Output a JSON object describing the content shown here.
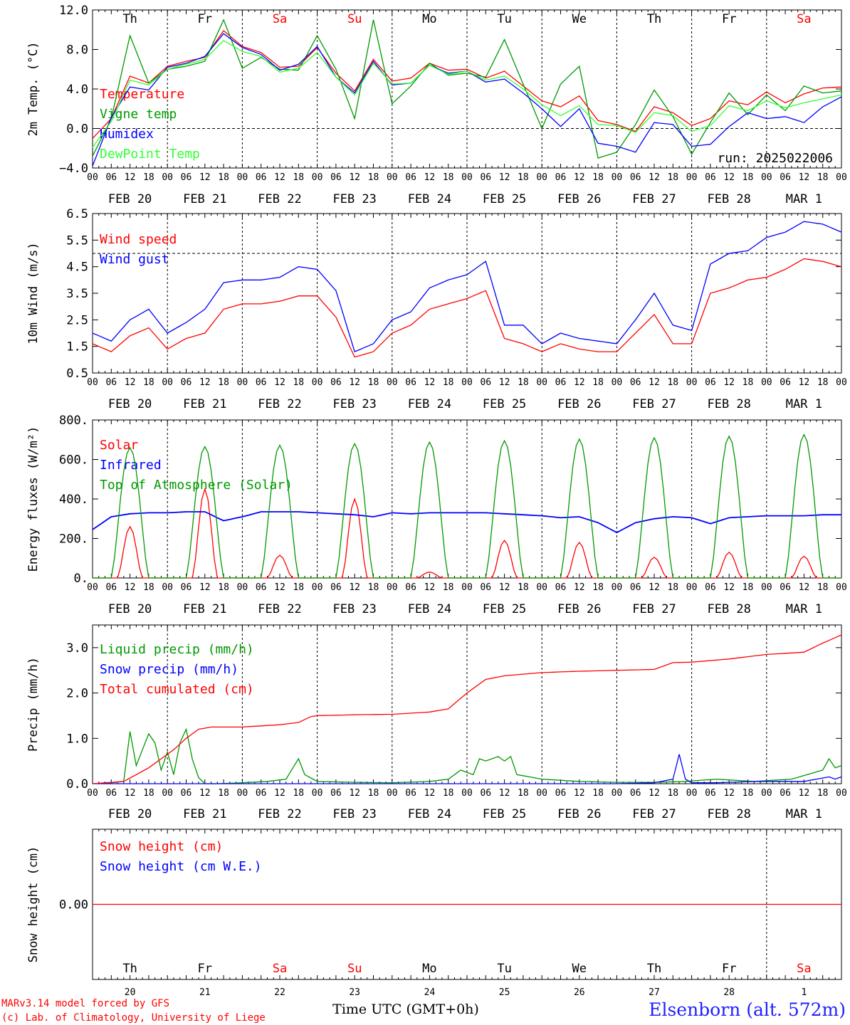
{
  "chart_data": [
    {
      "type": "line",
      "ylabel": "2m Temp. (°C)",
      "ylim": [
        -4.0,
        12.0
      ],
      "yticks": [
        "12.0",
        "8.0",
        "4.0",
        "0.0",
        "−4.0"
      ],
      "ytick_values": [
        12,
        8,
        4,
        0,
        -4
      ],
      "hlines": [
        0
      ],
      "x_unit": "hours since FEB 20 00 UTC",
      "weekdays": [
        "Th",
        "Fr",
        "Sa",
        "Su",
        "Mo",
        "Tu",
        "We",
        "Th",
        "Fr",
        "Sa"
      ],
      "weekday_colors": [
        "#000000",
        "#000000",
        "#ff0000",
        "#ff0000",
        "#000000",
        "#000000",
        "#000000",
        "#000000",
        "#000000",
        "#ff0000"
      ],
      "annotation": "run: 2025022006",
      "series": [
        {
          "name": "Temperature",
          "color": "#ff0000",
          "x": [
            0,
            6,
            12,
            18,
            24,
            30,
            36,
            42,
            48,
            54,
            60,
            66,
            72,
            78,
            84,
            90,
            96,
            102,
            108,
            114,
            120,
            126,
            132,
            138,
            144,
            150,
            156,
            162,
            168,
            174,
            180,
            186,
            192,
            198,
            204,
            210,
            216,
            222,
            228,
            234,
            240
          ],
          "y": [
            -1.0,
            1.0,
            5.3,
            4.6,
            6.3,
            6.8,
            7.2,
            9.9,
            8.3,
            7.7,
            6.2,
            6.3,
            8.2,
            5.6,
            3.8,
            7.0,
            4.8,
            5.1,
            6.6,
            5.9,
            6.0,
            5.1,
            5.8,
            4.3,
            2.8,
            2.2,
            3.3,
            0.8,
            0.4,
            -0.3,
            2.2,
            1.6,
            0.3,
            1.0,
            2.8,
            2.4,
            3.7,
            2.6,
            3.5,
            4.1,
            4.2
          ]
        },
        {
          "name": "Vigne temp",
          "color": "#009900",
          "x": [
            0,
            6,
            12,
            18,
            24,
            30,
            36,
            42,
            48,
            54,
            60,
            66,
            72,
            78,
            84,
            90,
            96,
            102,
            108,
            114,
            120,
            126,
            132,
            138,
            144,
            150,
            156,
            162,
            168,
            174,
            180,
            186,
            192,
            198,
            204,
            210,
            216,
            222,
            228,
            234,
            240
          ],
          "y": [
            -2.8,
            1.0,
            9.4,
            4.6,
            6.0,
            6.3,
            6.8,
            11.0,
            6.1,
            7.2,
            6.0,
            5.9,
            9.4,
            6.0,
            1.0,
            11.0,
            2.5,
            4.3,
            6.6,
            5.4,
            5.6,
            5.2,
            9.0,
            4.5,
            0.0,
            4.5,
            6.3,
            -3.0,
            -2.4,
            0.4,
            3.9,
            1.2,
            -2.6,
            0.6,
            3.6,
            1.4,
            3.4,
            1.8,
            4.3,
            3.6,
            3.8
          ]
        },
        {
          "name": "Humidex",
          "color": "#0000ff",
          "x": [
            0,
            6,
            12,
            18,
            24,
            30,
            36,
            42,
            48,
            54,
            60,
            66,
            72,
            78,
            84,
            90,
            96,
            102,
            108,
            114,
            120,
            126,
            132,
            138,
            144,
            150,
            156,
            162,
            168,
            174,
            180,
            186,
            192,
            198,
            204,
            210,
            216,
            222,
            228,
            234,
            240
          ],
          "y": [
            -3.8,
            1.1,
            4.2,
            3.9,
            6.2,
            6.6,
            7.3,
            9.6,
            8.2,
            7.5,
            5.9,
            6.5,
            8.3,
            5.2,
            3.6,
            6.8,
            4.4,
            4.6,
            6.4,
            5.6,
            5.8,
            4.7,
            5.0,
            3.6,
            2.0,
            0.2,
            2.0,
            -1.5,
            -1.8,
            -2.4,
            0.6,
            0.4,
            -1.8,
            -1.6,
            0.2,
            1.6,
            1.0,
            1.2,
            0.6,
            2.2,
            3.2
          ]
        },
        {
          "name": "DewPoint Temp",
          "color": "#33ff33",
          "x": [
            0,
            6,
            12,
            18,
            24,
            30,
            36,
            42,
            48,
            54,
            60,
            66,
            72,
            78,
            84,
            90,
            96,
            102,
            108,
            114,
            120,
            126,
            132,
            138,
            144,
            150,
            156,
            162,
            168,
            174,
            180,
            186,
            192,
            198,
            204,
            210,
            216,
            222,
            228,
            234,
            240
          ],
          "y": [
            -1.9,
            0.7,
            4.9,
            4.4,
            6.0,
            6.5,
            7.0,
            8.9,
            7.8,
            7.3,
            5.7,
            6.1,
            7.7,
            5.2,
            3.4,
            6.6,
            4.5,
            4.6,
            6.4,
            5.5,
            5.8,
            4.9,
            5.3,
            4.0,
            2.4,
            1.3,
            2.3,
            0.4,
            0.3,
            -0.4,
            1.6,
            1.3,
            -0.3,
            0.3,
            2.3,
            1.8,
            2.8,
            2.1,
            2.6,
            3.0,
            3.4
          ]
        }
      ]
    },
    {
      "type": "line",
      "ylabel": "10m Wind (m/s)",
      "ylim": [
        0.5,
        6.5
      ],
      "yticks": [
        "6.5",
        "5.5",
        "4.5",
        "3.5",
        "2.5",
        "1.5",
        "0.5"
      ],
      "ytick_values": [
        6.5,
        5.5,
        4.5,
        3.5,
        2.5,
        1.5,
        0.5
      ],
      "hlines": [
        5.0
      ],
      "series": [
        {
          "name": "Wind speed",
          "color": "#ff0000",
          "x": [
            0,
            6,
            12,
            18,
            24,
            30,
            36,
            42,
            48,
            54,
            60,
            66,
            72,
            78,
            84,
            90,
            96,
            102,
            108,
            114,
            120,
            126,
            132,
            138,
            144,
            150,
            156,
            162,
            168,
            174,
            180,
            186,
            192,
            198,
            204,
            210,
            216,
            222,
            228,
            234,
            240
          ],
          "y": [
            1.6,
            1.3,
            1.9,
            2.2,
            1.4,
            1.8,
            2.0,
            2.9,
            3.1,
            3.1,
            3.2,
            3.4,
            3.4,
            2.6,
            1.1,
            1.3,
            2.0,
            2.3,
            2.9,
            3.1,
            3.3,
            3.6,
            1.8,
            1.6,
            1.3,
            1.6,
            1.4,
            1.3,
            1.3,
            2.0,
            2.7,
            1.6,
            1.6,
            3.5,
            3.7,
            4.0,
            4.1,
            4.4,
            4.8,
            4.7,
            4.5
          ]
        },
        {
          "name": "Wind gust",
          "color": "#0000ff",
          "x": [
            0,
            6,
            12,
            18,
            24,
            30,
            36,
            42,
            48,
            54,
            60,
            66,
            72,
            78,
            84,
            90,
            96,
            102,
            108,
            114,
            120,
            126,
            132,
            138,
            144,
            150,
            156,
            162,
            168,
            174,
            180,
            186,
            192,
            198,
            204,
            210,
            216,
            222,
            228,
            234,
            240
          ],
          "y": [
            2.0,
            1.7,
            2.5,
            2.9,
            2.0,
            2.4,
            2.9,
            3.9,
            4.0,
            4.0,
            4.1,
            4.5,
            4.4,
            3.6,
            1.3,
            1.6,
            2.5,
            2.8,
            3.7,
            4.0,
            4.2,
            4.7,
            2.3,
            2.3,
            1.6,
            2.0,
            1.8,
            1.7,
            1.6,
            2.5,
            3.5,
            2.3,
            2.1,
            4.6,
            5.0,
            5.1,
            5.6,
            5.8,
            6.2,
            6.1,
            5.8
          ]
        }
      ]
    },
    {
      "type": "line",
      "ylabel": "Energy fluxes (W/m²)",
      "ylim": [
        0,
        800
      ],
      "yticks": [
        "800.",
        "600.",
        "400.",
        "200.",
        "0."
      ],
      "ytick_values": [
        800,
        600,
        400,
        200,
        0
      ],
      "series": [
        {
          "name": "Solar",
          "color": "#ff0000",
          "day_peaks": [
            260,
            450,
            115,
            400,
            30,
            190,
            180,
            105,
            130,
            110
          ]
        },
        {
          "name": "Infrared",
          "color": "#0000ff",
          "x": [
            0,
            6,
            12,
            18,
            24,
            30,
            36,
            42,
            48,
            54,
            60,
            66,
            72,
            78,
            84,
            90,
            96,
            102,
            108,
            114,
            120,
            126,
            132,
            138,
            144,
            150,
            156,
            162,
            168,
            174,
            180,
            186,
            192,
            198,
            204,
            210,
            216,
            222,
            228,
            234,
            240
          ],
          "y": [
            245,
            310,
            325,
            330,
            330,
            335,
            335,
            290,
            310,
            335,
            335,
            335,
            330,
            325,
            320,
            310,
            330,
            325,
            330,
            330,
            330,
            330,
            325,
            320,
            315,
            305,
            310,
            280,
            230,
            280,
            300,
            310,
            305,
            275,
            305,
            310,
            315,
            315,
            315,
            320,
            320
          ]
        },
        {
          "name": "Top of Atmosphere (Solar)",
          "color": "#009900",
          "day_peaks": [
            660,
            665,
            672,
            680,
            688,
            695,
            703,
            710,
            718,
            726
          ]
        }
      ]
    },
    {
      "type": "line",
      "ylabel": "Precip (mm/h)",
      "ylim": [
        0,
        3.5
      ],
      "yticks": [
        "3.0",
        "2.0",
        "1.0",
        "0.0"
      ],
      "ytick_values": [
        3.0,
        2.0,
        1.0,
        0.0
      ],
      "series": [
        {
          "name": "Liquid precip (mm/h)",
          "color": "#009900",
          "x": [
            0,
            6,
            10,
            12,
            14,
            18,
            20,
            22,
            24,
            26,
            28,
            30,
            33,
            36,
            40,
            48,
            56,
            62,
            66,
            68,
            72,
            84,
            96,
            108,
            114,
            118,
            122,
            124,
            126,
            130,
            132,
            134,
            136,
            140,
            144,
            156,
            168,
            180,
            190,
            200,
            212,
            224,
            234,
            236,
            238,
            240
          ],
          "y": [
            0,
            0.02,
            0.05,
            1.15,
            0.4,
            1.1,
            0.9,
            0.3,
            0.7,
            0.2,
            0.9,
            1.2,
            0.2,
            0.0,
            0.0,
            0.02,
            0.05,
            0.1,
            0.55,
            0.2,
            0.05,
            0.03,
            0.02,
            0.05,
            0.1,
            0.3,
            0.2,
            0.55,
            0.5,
            0.6,
            0.5,
            0.6,
            0.2,
            0.15,
            0.1,
            0.05,
            0.03,
            0.03,
            0.05,
            0.1,
            0.05,
            0.1,
            0.3,
            0.55,
            0.35,
            0.4
          ]
        },
        {
          "name": "Snow precip (mm/h)",
          "color": "#0000ff",
          "x": [
            0,
            120,
            168,
            180,
            186,
            188,
            190,
            192,
            200,
            212,
            228,
            236,
            238,
            240
          ],
          "y": [
            0,
            0,
            0,
            0.02,
            0.1,
            0.65,
            0.1,
            0.02,
            0.02,
            0.05,
            0.05,
            0.15,
            0.1,
            0.15
          ]
        },
        {
          "name": "Total cumulated (cm)",
          "color": "#ff0000",
          "x": [
            0,
            10,
            14,
            18,
            22,
            26,
            30,
            34,
            38,
            48,
            60,
            66,
            70,
            72,
            84,
            96,
            108,
            114,
            120,
            126,
            132,
            144,
            156,
            168,
            180,
            186,
            192,
            204,
            216,
            228,
            234,
            240
          ],
          "y": [
            0,
            0.05,
            0.2,
            0.35,
            0.55,
            0.75,
            1.0,
            1.2,
            1.25,
            1.25,
            1.3,
            1.35,
            1.48,
            1.5,
            1.52,
            1.53,
            1.58,
            1.65,
            2.0,
            2.3,
            2.38,
            2.45,
            2.48,
            2.5,
            2.52,
            2.67,
            2.68,
            2.75,
            2.85,
            2.9,
            3.1,
            3.28
          ]
        }
      ]
    },
    {
      "type": "line",
      "ylabel": "Snow height (cm)",
      "ylim": [
        -1,
        1
      ],
      "yticks": [
        "0.00"
      ],
      "ytick_values": [
        0
      ],
      "series": [
        {
          "name": "Snow height (cm)",
          "color": "#ff0000",
          "x": [
            0,
            240
          ],
          "y": [
            0,
            0
          ]
        },
        {
          "name": "Snow height (cm W.E.)",
          "color": "#0000ff",
          "x": [],
          "y": []
        }
      ],
      "bottom_days": [
        "20",
        "21",
        "22",
        "23",
        "24",
        "25",
        "26",
        "27",
        "28",
        "1"
      ]
    }
  ],
  "x_axis": {
    "hour_ticks": [
      "00",
      "06",
      "12",
      "18"
    ],
    "end_tick": "00",
    "dates": [
      "FEB 20",
      "FEB 21",
      "FEB 22",
      "FEB 23",
      "FEB 24",
      "FEB 25",
      "FEB 26",
      "FEB 27",
      "FEB 28",
      "MAR  1"
    ],
    "title": "Time UTC (GMT+0h)"
  },
  "footer": {
    "model_line": "MARv3.14 model forced by GFS",
    "copyright_line": "(c) Lab. of Climatology, University of Liege",
    "station": "Elsenborn (alt. 572m)"
  }
}
